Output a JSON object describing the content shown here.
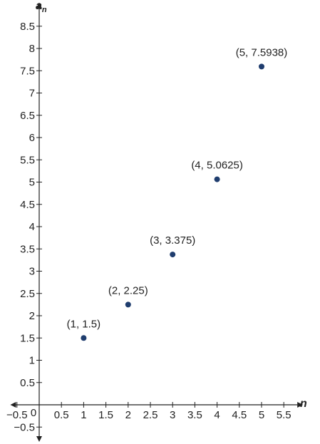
{
  "chart_data": {
    "type": "scatter",
    "xlabel": "n",
    "ylabel": {
      "base": "a",
      "subscript": "n"
    },
    "xlim": [
      -0.65,
      5.9
    ],
    "ylim": [
      -0.8,
      9.0
    ],
    "x_ticks": [
      -0.5,
      0.5,
      1,
      1.5,
      2,
      2.5,
      3,
      3.5,
      4,
      4.5,
      5,
      5.5
    ],
    "x_tick_labels": [
      "−0.5",
      "0.5",
      "1",
      "1.5",
      "2",
      "2.5",
      "3",
      "3.5",
      "4",
      "4.5",
      "5",
      "5.5"
    ],
    "y_ticks": [
      -0.5,
      0.5,
      1,
      1.5,
      2,
      2.5,
      3,
      3.5,
      4,
      4.5,
      5,
      5.5,
      6,
      6.5,
      7,
      7.5,
      8,
      8.5
    ],
    "y_tick_labels": [
      "−0.5",
      "0.5",
      "1",
      "1.5",
      "2",
      "2.5",
      "3",
      "3.5",
      "4",
      "4.5",
      "5",
      "5.5",
      "6",
      "6.5",
      "7",
      "7.5",
      "8",
      "8.5"
    ],
    "origin_label": "0",
    "grid": false,
    "point_color": "#1f3d6e",
    "points": [
      {
        "x": 1,
        "y": 1.5,
        "label": "(1, 1.5)"
      },
      {
        "x": 2,
        "y": 2.25,
        "label": "(2, 2.25)"
      },
      {
        "x": 3,
        "y": 3.375,
        "label": "(3, 3.375)"
      },
      {
        "x": 4,
        "y": 5.0625,
        "label": "(4, 5.0625)"
      },
      {
        "x": 5,
        "y": 7.5938,
        "label": "(5, 7.5938)"
      }
    ]
  }
}
